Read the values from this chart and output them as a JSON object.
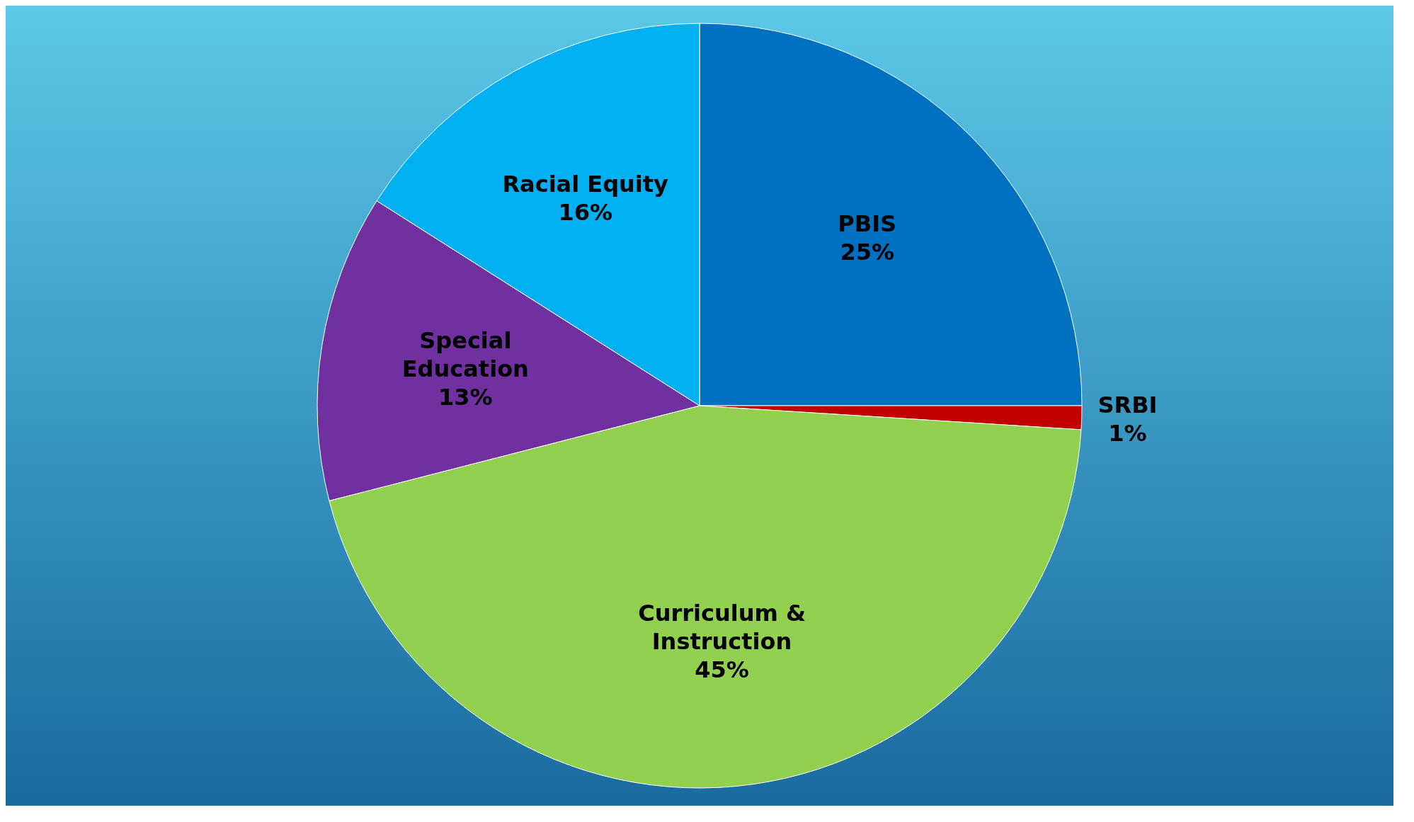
{
  "chart_data": {
    "type": "pie",
    "categories": [
      "PBIS",
      "SRBI",
      "Curriculum & Instruction",
      "Special Education",
      "Racial Equity"
    ],
    "values": [
      25,
      1,
      45,
      13,
      16
    ],
    "value_labels": [
      "25%",
      "1%",
      "45%",
      "13%",
      "16%"
    ],
    "colors": [
      "#0070c0",
      "#c00000",
      "#92d050",
      "#7030a0",
      "#00b0f0"
    ],
    "legend": false
  }
}
